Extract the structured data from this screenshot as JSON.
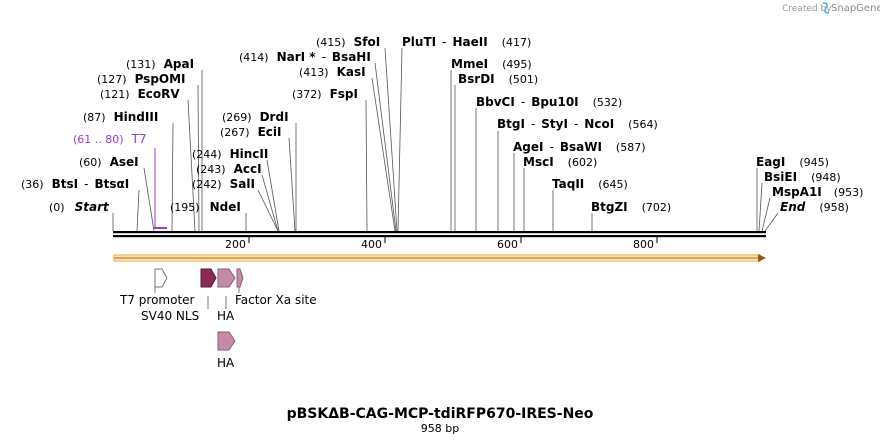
{
  "header": {
    "credit": "Created by",
    "brand": "SnapGene"
  },
  "plasmid": {
    "name": "pBSKΔB-CAG-MCP-tdiRFP670-IRES-Neo",
    "length_label": "958 bp",
    "length": 958
  },
  "ruler": {
    "ticks": [
      "200",
      "400",
      "600",
      "800"
    ],
    "tick_values": [
      200,
      400,
      600,
      800
    ]
  },
  "sites": [
    {
      "pos_text": "(415)",
      "names": [
        "SfoI"
      ],
      "bp": 415
    },
    {
      "pos_text": "(417)",
      "names": [
        "PluTI",
        "HaeII"
      ],
      "bp": 417
    },
    {
      "pos_text": "(414)",
      "names": [
        "NarI *",
        "BsaHI"
      ],
      "bp": 414
    },
    {
      "pos_text": "(413)",
      "names": [
        "KasI"
      ],
      "bp": 413
    },
    {
      "pos_text": "(372)",
      "names": [
        "FspI"
      ],
      "bp": 372
    },
    {
      "pos_text": "(495)",
      "names": [
        "MmeI"
      ],
      "bp": 495
    },
    {
      "pos_text": "(501)",
      "names": [
        "BsrDI"
      ],
      "bp": 501
    },
    {
      "pos_text": "(532)",
      "names": [
        "BbvCI",
        "Bpu10I"
      ],
      "bp": 532
    },
    {
      "pos_text": "(564)",
      "names": [
        "BtgI",
        "StyI",
        "NcoI"
      ],
      "bp": 564
    },
    {
      "pos_text": "(587)",
      "names": [
        "AgeI",
        "BsaWI"
      ],
      "bp": 587
    },
    {
      "pos_text": "(602)",
      "names": [
        "MscI"
      ],
      "bp": 602
    },
    {
      "pos_text": "(645)",
      "names": [
        "TaqII"
      ],
      "bp": 645
    },
    {
      "pos_text": "(702)",
      "names": [
        "BtgZI"
      ],
      "bp": 702
    },
    {
      "pos_text": "(131)",
      "names": [
        "ApaI"
      ],
      "bp": 131
    },
    {
      "pos_text": "(127)",
      "names": [
        "PspOMI"
      ],
      "bp": 127
    },
    {
      "pos_text": "(121)",
      "names": [
        "EcoRV"
      ],
      "bp": 121
    },
    {
      "pos_text": "(87)",
      "names": [
        "HindIII"
      ],
      "bp": 87
    },
    {
      "pos_text": "(60)",
      "names": [
        "AseI"
      ],
      "bp": 60
    },
    {
      "pos_text": "(36)",
      "names": [
        "BtsI",
        "BtsαI"
      ],
      "bp": 36
    },
    {
      "pos_text": "(0)",
      "names": [
        "Start"
      ],
      "bp": 0,
      "italic": true
    },
    {
      "pos_text": "(269)",
      "names": [
        "DrdI"
      ],
      "bp": 269
    },
    {
      "pos_text": "(267)",
      "names": [
        "EciI"
      ],
      "bp": 267
    },
    {
      "pos_text": "(244)",
      "names": [
        "HincII"
      ],
      "bp": 244
    },
    {
      "pos_text": "(243)",
      "names": [
        "AccI"
      ],
      "bp": 243
    },
    {
      "pos_text": "(242)",
      "names": [
        "SalI"
      ],
      "bp": 242
    },
    {
      "pos_text": "(195)",
      "names": [
        "NdeI"
      ],
      "bp": 195
    },
    {
      "pos_text": "(945)",
      "names": [
        "EagI"
      ],
      "bp": 945
    },
    {
      "pos_text": "(948)",
      "names": [
        "BsiEI"
      ],
      "bp": 948
    },
    {
      "pos_text": "(953)",
      "names": [
        "MspA1I"
      ],
      "bp": 953
    },
    {
      "pos_text": "(958)",
      "names": [
        "End"
      ],
      "bp": 958,
      "italic": true
    }
  ],
  "primer": {
    "pos_text": "(61 .. 80)",
    "name": "T7",
    "start": 61,
    "end": 80,
    "color": "#9a3bd1"
  },
  "features": [
    {
      "name": "T7 promoter",
      "color": "#ffffff"
    },
    {
      "name": "SV40 NLS",
      "color": "#8b2a55"
    },
    {
      "name": "HA",
      "color": "#c48ba8"
    },
    {
      "name": "Factor Xa site",
      "color": "#c48ba8"
    },
    {
      "name": "HA",
      "color": "#c48ba8"
    }
  ],
  "colors": {
    "backbone": "#000000",
    "orf_bar": "#f2a93b",
    "orf_fill": "#fde9c4"
  }
}
